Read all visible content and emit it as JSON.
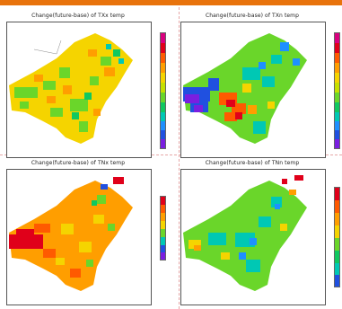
{
  "panels": [
    {
      "title": "Change(future-base) of TXx temp"
    },
    {
      "title": "Change(future-base) of TXn temp"
    },
    {
      "title": "Change(future-base) of TNx temp"
    },
    {
      "title": "Change(future-base) of TNn temp"
    }
  ],
  "colors": {
    "accent_bar": "#e8730c",
    "colorbar": [
      "#d9007f",
      "#e0001a",
      "#ff5a00",
      "#ff9e00",
      "#f5d400",
      "#c6e000",
      "#6ad62a",
      "#10c860",
      "#00c8b4",
      "#1e90ff",
      "#2050e0",
      "#7a1ee0"
    ]
  }
}
